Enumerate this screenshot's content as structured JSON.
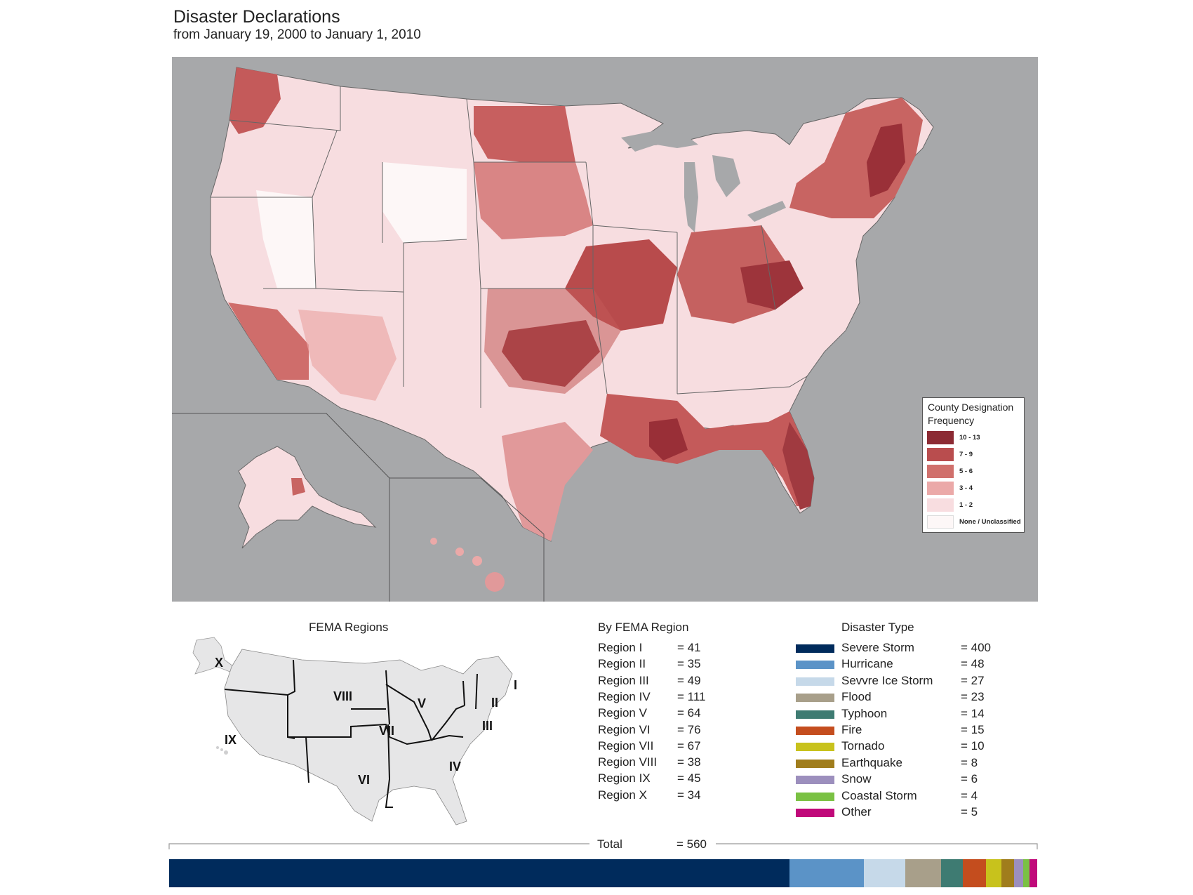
{
  "header": {
    "title": "Disaster Declarations",
    "subtitle": "from January 19, 2000  to  January 1, 2010"
  },
  "legend": {
    "title_line1": "County Designation",
    "title_line2": "Frequency",
    "classes": [
      {
        "label": "10 - 13",
        "color": "#8c2a33"
      },
      {
        "label": "7 - 9",
        "color": "#b94d4e"
      },
      {
        "label": "5 - 6",
        "color": "#d0706c"
      },
      {
        "label": "3 - 4",
        "color": "#eba9a8"
      },
      {
        "label": "1 - 2",
        "color": "#f8dde0"
      },
      {
        "label": "None / Unclassified",
        "color": "#fdf7f7"
      }
    ]
  },
  "fema_map": {
    "title": "FEMA Regions",
    "labels": [
      "I",
      "II",
      "III",
      "IV",
      "V",
      "VI",
      "VII",
      "VIII",
      "IX",
      "X"
    ]
  },
  "by_region": {
    "title": "By FEMA Region",
    "rows": [
      {
        "name": "Region I",
        "value": "= 41"
      },
      {
        "name": "Region II",
        "value": "= 35"
      },
      {
        "name": "Region III",
        "value": "= 49"
      },
      {
        "name": "Region IV",
        "value": "= 111"
      },
      {
        "name": "Region V",
        "value": "= 64"
      },
      {
        "name": "Region VI",
        "value": "= 76"
      },
      {
        "name": "Region VII",
        "value": "= 67"
      },
      {
        "name": "Region VIII",
        "value": "= 38"
      },
      {
        "name": "Region IX",
        "value": "= 45"
      },
      {
        "name": "Region X",
        "value": "= 34"
      }
    ]
  },
  "disaster_type": {
    "title": "Disaster Type",
    "rows": [
      {
        "name": "Severe Storm",
        "value": "= 400",
        "count": 400,
        "color": "#002b5c"
      },
      {
        "name": "Hurricane",
        "value": "= 48",
        "count": 48,
        "color": "#5b93c7"
      },
      {
        "name": "Sevvre Ice Storm",
        "value": "= 27",
        "count": 27,
        "color": "#c6d9e9"
      },
      {
        "name": "Flood",
        "value": "= 23",
        "count": 23,
        "color": "#a89f8a"
      },
      {
        "name": "Typhoon",
        "value": "= 14",
        "count": 14,
        "color": "#3e7b72"
      },
      {
        "name": "Fire",
        "value": "= 15",
        "count": 15,
        "color": "#c44d1e"
      },
      {
        "name": "Tornado",
        "value": "= 10",
        "count": 10,
        "color": "#c8c21c"
      },
      {
        "name": "Earthquake",
        "value": "= 8",
        "count": 8,
        "color": "#a07d1c"
      },
      {
        "name": "Snow",
        "value": "= 6",
        "count": 6,
        "color": "#9c8fbd"
      },
      {
        "name": "Coastal Storm",
        "value": "= 4",
        "count": 4,
        "color": "#7ac143"
      },
      {
        "name": "Other",
        "value": "= 5",
        "count": 5,
        "color": "#c0097a"
      }
    ]
  },
  "total": {
    "label": "Total",
    "value": "= 560"
  },
  "colors": {
    "water": "#a7a8aa",
    "border": "#555555"
  }
}
